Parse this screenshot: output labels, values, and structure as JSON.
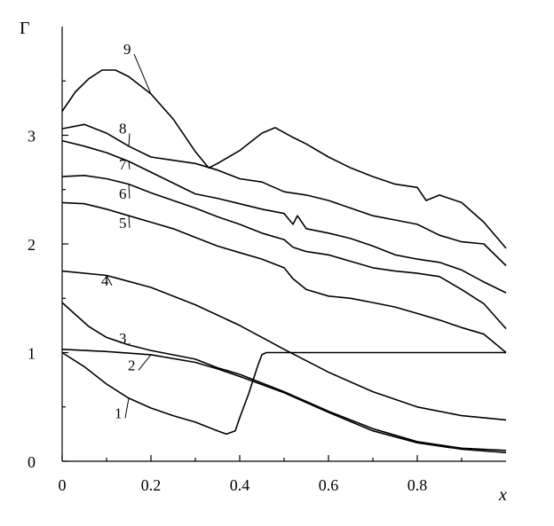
{
  "chart_data": {
    "type": "line",
    "title": "",
    "xlabel": "x",
    "ylabel": "Γ",
    "xlim": [
      0,
      1
    ],
    "ylim": [
      0,
      4
    ],
    "grid": false,
    "legend": "none",
    "x_ticks": [
      {
        "value": 0,
        "label": "0"
      },
      {
        "value": 0.2,
        "label": "0.2"
      },
      {
        "value": 0.4,
        "label": "0.4"
      },
      {
        "value": 0.6,
        "label": "0.6"
      },
      {
        "value": 0.8,
        "label": "0.8"
      }
    ],
    "y_ticks": [
      {
        "value": 0,
        "label": "0"
      },
      {
        "value": 1,
        "label": "1"
      },
      {
        "value": 2,
        "label": "2"
      },
      {
        "value": 3,
        "label": "3"
      }
    ],
    "series": [
      {
        "label": "1",
        "label_anchor": [
          0.13,
          0.43
        ],
        "points": [
          [
            0,
            1.0
          ],
          [
            0.05,
            0.87
          ],
          [
            0.1,
            0.71
          ],
          [
            0.15,
            0.58
          ],
          [
            0.2,
            0.49
          ],
          [
            0.25,
            0.42
          ],
          [
            0.3,
            0.36
          ],
          [
            0.35,
            0.28
          ],
          [
            0.37,
            0.25
          ],
          [
            0.39,
            0.28
          ],
          [
            0.4,
            0.4
          ],
          [
            0.42,
            0.62
          ],
          [
            0.44,
            0.87
          ],
          [
            0.45,
            0.98
          ],
          [
            0.46,
            1.0
          ],
          [
            0.55,
            1.0
          ],
          [
            0.7,
            1.0
          ],
          [
            0.85,
            1.0
          ],
          [
            1.0,
            1.0
          ]
        ]
      },
      {
        "label": "2",
        "label_anchor": [
          0.16,
          0.87
        ],
        "points": [
          [
            0,
            1.03
          ],
          [
            0.1,
            1.01
          ],
          [
            0.2,
            0.98
          ],
          [
            0.3,
            0.91
          ],
          [
            0.35,
            0.85
          ],
          [
            0.4,
            0.78
          ],
          [
            0.5,
            0.63
          ],
          [
            0.6,
            0.45
          ],
          [
            0.7,
            0.28
          ],
          [
            0.8,
            0.17
          ],
          [
            0.9,
            0.11
          ],
          [
            1.0,
            0.08
          ]
        ]
      },
      {
        "label": "3",
        "label_anchor": [
          0.14,
          1.12
        ],
        "points": [
          [
            0,
            1.46
          ],
          [
            0.03,
            1.35
          ],
          [
            0.06,
            1.24
          ],
          [
            0.1,
            1.14
          ],
          [
            0.15,
            1.07
          ],
          [
            0.2,
            1.02
          ],
          [
            0.3,
            0.94
          ],
          [
            0.35,
            0.86
          ],
          [
            0.4,
            0.8
          ],
          [
            0.5,
            0.64
          ],
          [
            0.6,
            0.46
          ],
          [
            0.7,
            0.3
          ],
          [
            0.8,
            0.18
          ],
          [
            0.9,
            0.12
          ],
          [
            1.0,
            0.1
          ]
        ]
      },
      {
        "label": "4",
        "label_anchor": [
          0.1,
          1.65
        ],
        "points": [
          [
            0,
            1.75
          ],
          [
            0.1,
            1.71
          ],
          [
            0.2,
            1.6
          ],
          [
            0.3,
            1.44
          ],
          [
            0.4,
            1.25
          ],
          [
            0.5,
            1.03
          ],
          [
            0.6,
            0.82
          ],
          [
            0.7,
            0.64
          ],
          [
            0.8,
            0.5
          ],
          [
            0.9,
            0.42
          ],
          [
            1.0,
            0.38
          ]
        ]
      },
      {
        "label": "5",
        "label_anchor": [
          0.14,
          2.18
        ],
        "points": [
          [
            0,
            2.38
          ],
          [
            0.05,
            2.37
          ],
          [
            0.1,
            2.32
          ],
          [
            0.15,
            2.26
          ],
          [
            0.2,
            2.2
          ],
          [
            0.25,
            2.14
          ],
          [
            0.3,
            2.06
          ],
          [
            0.35,
            1.98
          ],
          [
            0.4,
            1.92
          ],
          [
            0.45,
            1.86
          ],
          [
            0.5,
            1.78
          ],
          [
            0.52,
            1.68
          ],
          [
            0.55,
            1.58
          ],
          [
            0.6,
            1.52
          ],
          [
            0.65,
            1.5
          ],
          [
            0.7,
            1.46
          ],
          [
            0.75,
            1.42
          ],
          [
            0.8,
            1.36
          ],
          [
            0.85,
            1.3
          ],
          [
            0.9,
            1.23
          ],
          [
            0.95,
            1.17
          ],
          [
            1.0,
            1.0
          ]
        ]
      },
      {
        "label": "6",
        "label_anchor": [
          0.14,
          2.45
        ],
        "points": [
          [
            0,
            2.62
          ],
          [
            0.05,
            2.63
          ],
          [
            0.1,
            2.6
          ],
          [
            0.15,
            2.55
          ],
          [
            0.2,
            2.47
          ],
          [
            0.25,
            2.4
          ],
          [
            0.3,
            2.33
          ],
          [
            0.35,
            2.25
          ],
          [
            0.4,
            2.18
          ],
          [
            0.45,
            2.1
          ],
          [
            0.5,
            2.04
          ],
          [
            0.52,
            1.97
          ],
          [
            0.55,
            1.93
          ],
          [
            0.6,
            1.9
          ],
          [
            0.65,
            1.84
          ],
          [
            0.7,
            1.78
          ],
          [
            0.75,
            1.75
          ],
          [
            0.8,
            1.73
          ],
          [
            0.85,
            1.7
          ],
          [
            0.9,
            1.58
          ],
          [
            0.95,
            1.45
          ],
          [
            1.0,
            1.22
          ]
        ]
      },
      {
        "label": "7",
        "label_anchor": [
          0.14,
          2.72
        ],
        "points": [
          [
            0,
            2.95
          ],
          [
            0.05,
            2.9
          ],
          [
            0.1,
            2.84
          ],
          [
            0.15,
            2.76
          ],
          [
            0.2,
            2.66
          ],
          [
            0.25,
            2.56
          ],
          [
            0.3,
            2.46
          ],
          [
            0.35,
            2.42
          ],
          [
            0.4,
            2.37
          ],
          [
            0.45,
            2.32
          ],
          [
            0.5,
            2.28
          ],
          [
            0.52,
            2.18
          ],
          [
            0.53,
            2.26
          ],
          [
            0.55,
            2.14
          ],
          [
            0.6,
            2.1
          ],
          [
            0.65,
            2.05
          ],
          [
            0.7,
            1.98
          ],
          [
            0.75,
            1.9
          ],
          [
            0.8,
            1.86
          ],
          [
            0.85,
            1.83
          ],
          [
            0.9,
            1.76
          ],
          [
            0.95,
            1.65
          ],
          [
            1.0,
            1.55
          ]
        ]
      },
      {
        "label": "8",
        "label_anchor": [
          0.14,
          3.05
        ],
        "points": [
          [
            0,
            3.06
          ],
          [
            0.05,
            3.1
          ],
          [
            0.1,
            3.02
          ],
          [
            0.15,
            2.9
          ],
          [
            0.2,
            2.8
          ],
          [
            0.25,
            2.77
          ],
          [
            0.3,
            2.74
          ],
          [
            0.35,
            2.68
          ],
          [
            0.4,
            2.6
          ],
          [
            0.45,
            2.57
          ],
          [
            0.5,
            2.48
          ],
          [
            0.55,
            2.45
          ],
          [
            0.6,
            2.4
          ],
          [
            0.65,
            2.33
          ],
          [
            0.7,
            2.26
          ],
          [
            0.75,
            2.22
          ],
          [
            0.8,
            2.18
          ],
          [
            0.85,
            2.08
          ],
          [
            0.9,
            2.02
          ],
          [
            0.95,
            2.0
          ],
          [
            1.0,
            1.8
          ]
        ]
      },
      {
        "label": "9",
        "label_anchor": [
          0.15,
          3.78
        ],
        "points": [
          [
            0,
            3.22
          ],
          [
            0.03,
            3.4
          ],
          [
            0.06,
            3.52
          ],
          [
            0.09,
            3.6
          ],
          [
            0.12,
            3.6
          ],
          [
            0.15,
            3.54
          ],
          [
            0.2,
            3.38
          ],
          [
            0.25,
            3.15
          ],
          [
            0.3,
            2.85
          ],
          [
            0.33,
            2.7
          ],
          [
            0.35,
            2.74
          ],
          [
            0.4,
            2.86
          ],
          [
            0.45,
            3.02
          ],
          [
            0.48,
            3.07
          ],
          [
            0.52,
            2.98
          ],
          [
            0.55,
            2.92
          ],
          [
            0.6,
            2.8
          ],
          [
            0.65,
            2.7
          ],
          [
            0.7,
            2.62
          ],
          [
            0.75,
            2.55
          ],
          [
            0.8,
            2.52
          ],
          [
            0.82,
            2.4
          ],
          [
            0.85,
            2.45
          ],
          [
            0.9,
            2.38
          ],
          [
            0.95,
            2.2
          ],
          [
            1.0,
            1.96
          ]
        ]
      }
    ]
  }
}
